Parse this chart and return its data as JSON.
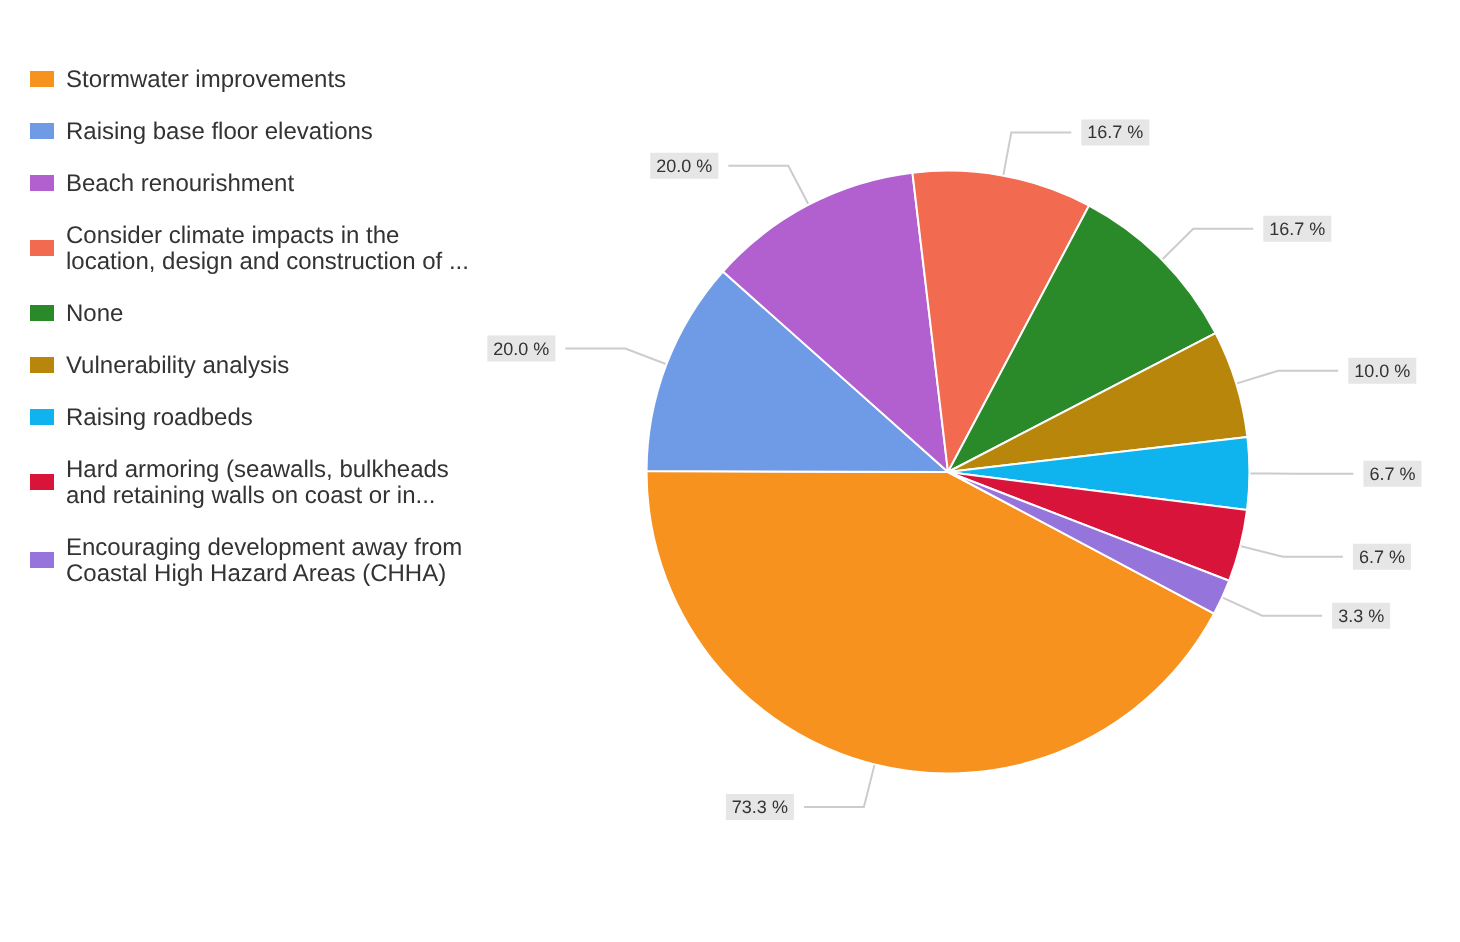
{
  "chart_data": {
    "type": "pie",
    "categories": [
      "Stormwater improvements",
      "Raising base floor elevations",
      "Beach renourishment",
      "Consider climate impacts in the location, design and construction of ...",
      "None",
      "Vulnerability analysis",
      "Raising roadbeds",
      "Hard armoring (seawalls, bulkheads and retaining walls on coast or in...",
      "Encouraging development away from Coastal High Hazard Areas (CHHA)"
    ],
    "values": [
      73.3,
      20.0,
      20.0,
      16.7,
      16.7,
      10.0,
      6.7,
      6.7,
      3.3
    ],
    "value_labels": [
      "73.3 %",
      "20.0 %",
      "20.0 %",
      "16.7 %",
      "16.7 %",
      "10.0 %",
      "6.7 %",
      "6.7 %",
      "3.3 %"
    ],
    "colors": [
      "#f7921e",
      "#6e9ae6",
      "#b25fd0",
      "#f26a4f",
      "#2a8a2a",
      "#b8860b",
      "#0fb3ee",
      "#d8143a",
      "#9575dc"
    ],
    "legend": "left"
  }
}
